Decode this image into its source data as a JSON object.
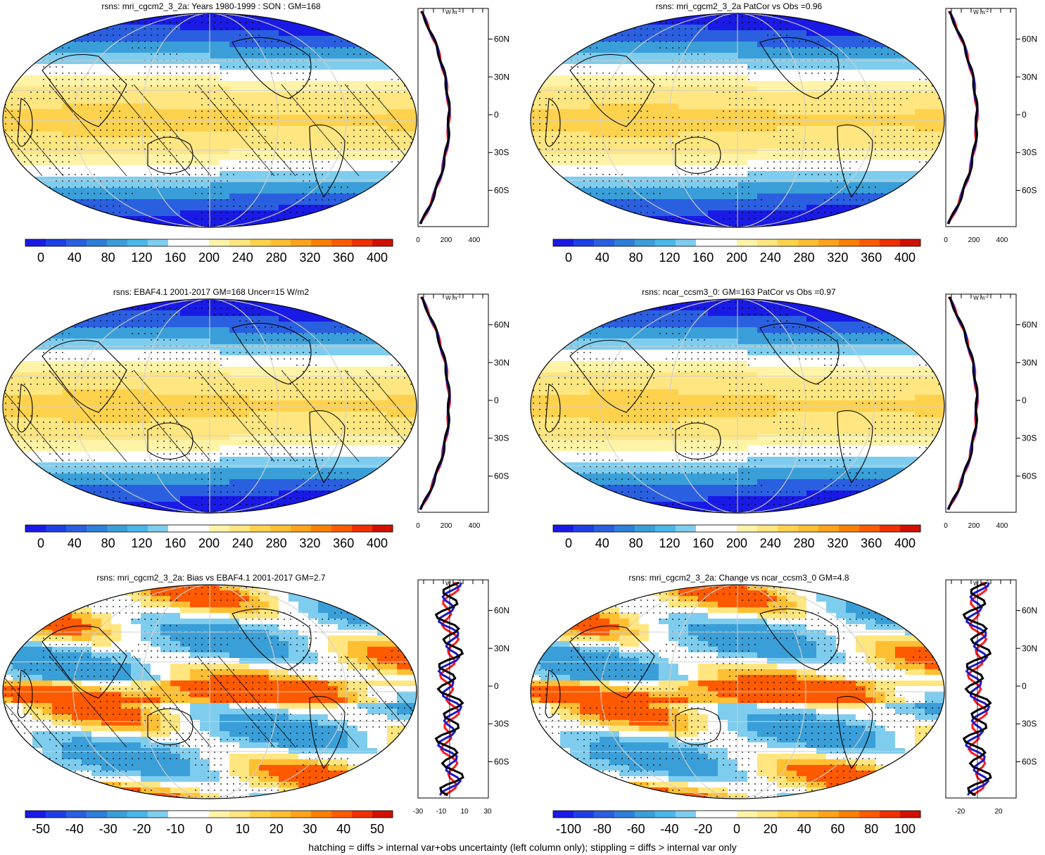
{
  "footnote": "hatching = diffs > internal var+obs uncertainty (left column only); stippling = diffs > internal var only",
  "profile_unit": "W m",
  "profile_unit_exp": "-2",
  "lat_ticks": [
    "60N",
    "30N",
    "0",
    "30S",
    "60S"
  ],
  "colors": {
    "model": "#000000",
    "obs": "#ff1a1a",
    "other": "#1a1acc",
    "grid": "#d0d0d0"
  },
  "panels": [
    {
      "title": "rsns: mri_cgcm2_3_2a: Years 1980-1999 : SON : GM=168",
      "kind": "climatology",
      "hatched": true,
      "colorbar": [
        "0",
        "40",
        "80",
        "120",
        "160",
        "200",
        "240",
        "280",
        "320",
        "360",
        "400"
      ],
      "profile_ticks": [
        "0",
        "200",
        "400"
      ]
    },
    {
      "title": "rsns: mri_cgcm2_3_2a PatCor vs Obs =0.96",
      "kind": "climatology",
      "hatched": false,
      "colorbar": [
        "0",
        "40",
        "80",
        "120",
        "160",
        "200",
        "240",
        "280",
        "320",
        "360",
        "400"
      ],
      "profile_ticks": [
        "0",
        "200",
        "400"
      ]
    },
    {
      "title": "rsns: EBAF4.1 2001-2017 GM=168 Uncer=15 W/m2",
      "kind": "climatology",
      "hatched": true,
      "colorbar": [
        "0",
        "40",
        "80",
        "120",
        "160",
        "200",
        "240",
        "280",
        "320",
        "360",
        "400"
      ],
      "profile_ticks": [
        "0",
        "200",
        "400"
      ]
    },
    {
      "title": "rsns: ncar_ccsm3_0: GM=163 PatCor vs Obs =0.97",
      "kind": "climatology",
      "hatched": false,
      "colorbar": [
        "0",
        "40",
        "80",
        "120",
        "160",
        "200",
        "240",
        "280",
        "320",
        "360",
        "400"
      ],
      "profile_ticks": [
        "0",
        "200",
        "400"
      ]
    },
    {
      "title": "rsns: mri_cgcm2_3_2a: Bias vs EBAF4.1 2001-2017  GM=2.7",
      "kind": "bias",
      "hatched": true,
      "colorbar": [
        "-50",
        "-40",
        "-30",
        "-20",
        "-10",
        "0",
        "10",
        "20",
        "30",
        "40",
        "50"
      ],
      "profile_ticks": [
        "-30",
        "-10",
        "10",
        "30"
      ]
    },
    {
      "title": "rsns: mri_cgcm2_3_2a: Change vs ncar_ccsm3_0 GM=4.8",
      "kind": "change",
      "hatched": false,
      "colorbar": [
        "-100",
        "-80",
        "-60",
        "-40",
        "-20",
        "0",
        "20",
        "40",
        "60",
        "80",
        "100"
      ],
      "profile_ticks": [
        "-20",
        "20"
      ]
    }
  ],
  "palette": [
    "#1a1ae6",
    "#1f3fe6",
    "#2a5fe0",
    "#2e7fd8",
    "#3a9fd8",
    "#48b8e8",
    "#7fcdee",
    "#ffffff",
    "#ffffff",
    "#fff3a8",
    "#ffe680",
    "#ffd24d",
    "#ffbf33",
    "#ffa31a",
    "#ff8000",
    "#ff5a00",
    "#f03000",
    "#d01000"
  ],
  "chart_data": [
    {
      "type": "line",
      "panel": "rsns: mri_cgcm2_3_2a: Years 1980-1999 : SON : GM=168",
      "x_label_unit": "W m-2",
      "y": [
        85,
        75,
        60,
        45,
        30,
        15,
        0,
        -15,
        -30,
        -45,
        -60,
        -70,
        -80
      ],
      "series": [
        {
          "color": "black",
          "values": [
            0,
            20,
            70,
            110,
            150,
            190,
            230,
            250,
            240,
            200,
            130,
            60,
            20
          ]
        },
        {
          "color": "red",
          "values": [
            0,
            20,
            75,
            115,
            160,
            200,
            220,
            245,
            245,
            210,
            140,
            65,
            20
          ]
        },
        {
          "color": "blue",
          "values": [
            0,
            20,
            70,
            110,
            155,
            195,
            235,
            255,
            245,
            205,
            135,
            60,
            20
          ]
        }
      ]
    },
    {
      "type": "line",
      "panel": "rsns: mri_cgcm2_3_2a: Bias vs EBAF4.1 2001-2017  GM=2.7",
      "x_label_unit": "W m-2",
      "y": [
        75,
        60,
        45,
        30,
        15,
        5,
        -5,
        -15,
        -30,
        -45,
        -55,
        -65,
        -75
      ],
      "series": [
        {
          "color": "black",
          "values": [
            0,
            -8,
            -12,
            -8,
            5,
            15,
            10,
            5,
            -5,
            -10,
            -15,
            10,
            -5
          ]
        },
        {
          "color": "red",
          "values": [
            0,
            -5,
            5,
            20,
            25,
            15,
            20,
            25,
            5,
            -20,
            -25,
            30,
            -10
          ]
        },
        {
          "color": "blue",
          "values": [
            0,
            -10,
            -20,
            -10,
            0,
            18,
            8,
            -5,
            -8,
            -5,
            -10,
            5,
            -10
          ]
        }
      ]
    }
  ]
}
